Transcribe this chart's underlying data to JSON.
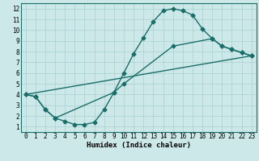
{
  "xlabel": "Humidex (Indice chaleur)",
  "bg_color": "#cce8e8",
  "line_color": "#1a6e6a",
  "markersize": 2.5,
  "linewidth": 1.0,
  "xlim": [
    -0.5,
    23.5
  ],
  "ylim": [
    0.5,
    12.5
  ],
  "xticks": [
    0,
    1,
    2,
    3,
    4,
    5,
    6,
    7,
    8,
    9,
    10,
    11,
    12,
    13,
    14,
    15,
    16,
    17,
    18,
    19,
    20,
    21,
    22,
    23
  ],
  "yticks": [
    1,
    2,
    3,
    4,
    5,
    6,
    7,
    8,
    9,
    10,
    11,
    12
  ],
  "curve1_x": [
    0,
    1,
    2,
    3,
    4,
    5,
    6,
    7,
    8,
    9,
    10,
    11,
    12,
    13,
    14,
    15,
    16,
    17,
    18,
    19,
    20,
    21,
    22,
    23
  ],
  "curve1_y": [
    4.0,
    3.8,
    2.6,
    1.8,
    1.5,
    1.2,
    1.2,
    1.4,
    2.6,
    4.2,
    6.0,
    7.8,
    9.3,
    10.8,
    11.8,
    12.0,
    11.8,
    11.4,
    10.1,
    9.2,
    8.5,
    8.2,
    7.9,
    7.6
  ],
  "curve2_x": [
    0,
    1,
    2,
    3,
    9,
    10,
    15,
    19,
    20,
    21,
    22,
    23
  ],
  "curve2_y": [
    4.0,
    3.8,
    2.6,
    1.8,
    4.2,
    5.0,
    8.5,
    9.2,
    8.5,
    8.2,
    7.9,
    7.6
  ],
  "curve3_x": [
    0,
    23
  ],
  "curve3_y": [
    4.0,
    7.6
  ],
  "grid_color": "#aacfcf",
  "xlabel_fontsize": 6.5,
  "tick_fontsize": 5.5
}
